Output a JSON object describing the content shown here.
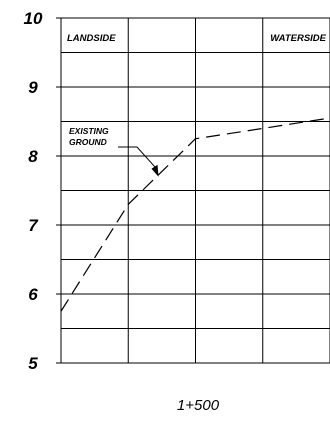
{
  "chart_data": {
    "type": "line",
    "title": "",
    "xlabel": "1+500",
    "ylabel": "",
    "ylim": [
      5,
      10
    ],
    "yticks": [
      "5",
      "6",
      "7",
      "8",
      "9",
      "10"
    ],
    "grid": true,
    "left_label": "LANDSIDE",
    "right_label": "WATERSIDE",
    "series": [
      {
        "name": "EXISTING GROUND",
        "style": "dashed",
        "x": [
          0,
          1,
          2,
          3,
          4
        ],
        "y": [
          5.75,
          7.3,
          8.25,
          8.4,
          8.55
        ]
      }
    ],
    "annotations": [
      {
        "text": [
          "EXISTING",
          "GROUND"
        ],
        "x": 1.45,
        "y": 7.7
      }
    ],
    "x_range": [
      0,
      4
    ]
  }
}
